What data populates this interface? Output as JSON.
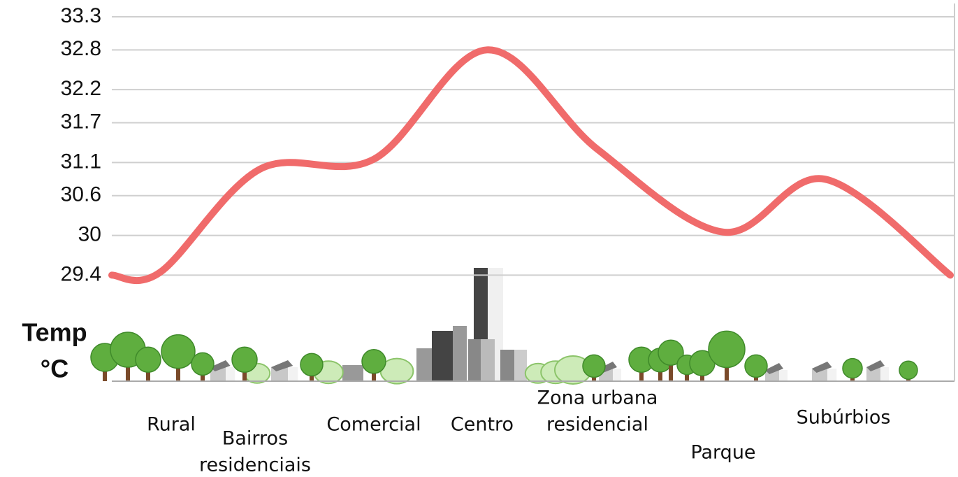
{
  "chart_data": {
    "type": "line",
    "y_label": [
      "Temp",
      "°C"
    ],
    "categories": [
      null,
      [
        "Rural"
      ],
      [
        "Bairros",
        "residenciais"
      ],
      [
        "Comercial"
      ],
      [
        "Centro"
      ],
      [
        "Zona urbana",
        "residencial"
      ],
      [
        "Parque"
      ],
      [
        "Subúrbios"
      ],
      null
    ],
    "series": [
      {
        "color": "#f06b6b",
        "values": [
          29.4,
          29.45,
          31.0,
          31.15,
          32.8,
          31.3,
          30.05,
          30.85,
          29.4
        ]
      }
    ],
    "ylim": [
      27.8,
      33.5
    ],
    "yticks": [
      29.4,
      30.0,
      30.6,
      31.1,
      31.7,
      32.2,
      32.8,
      33.3
    ],
    "grid": true
  }
}
